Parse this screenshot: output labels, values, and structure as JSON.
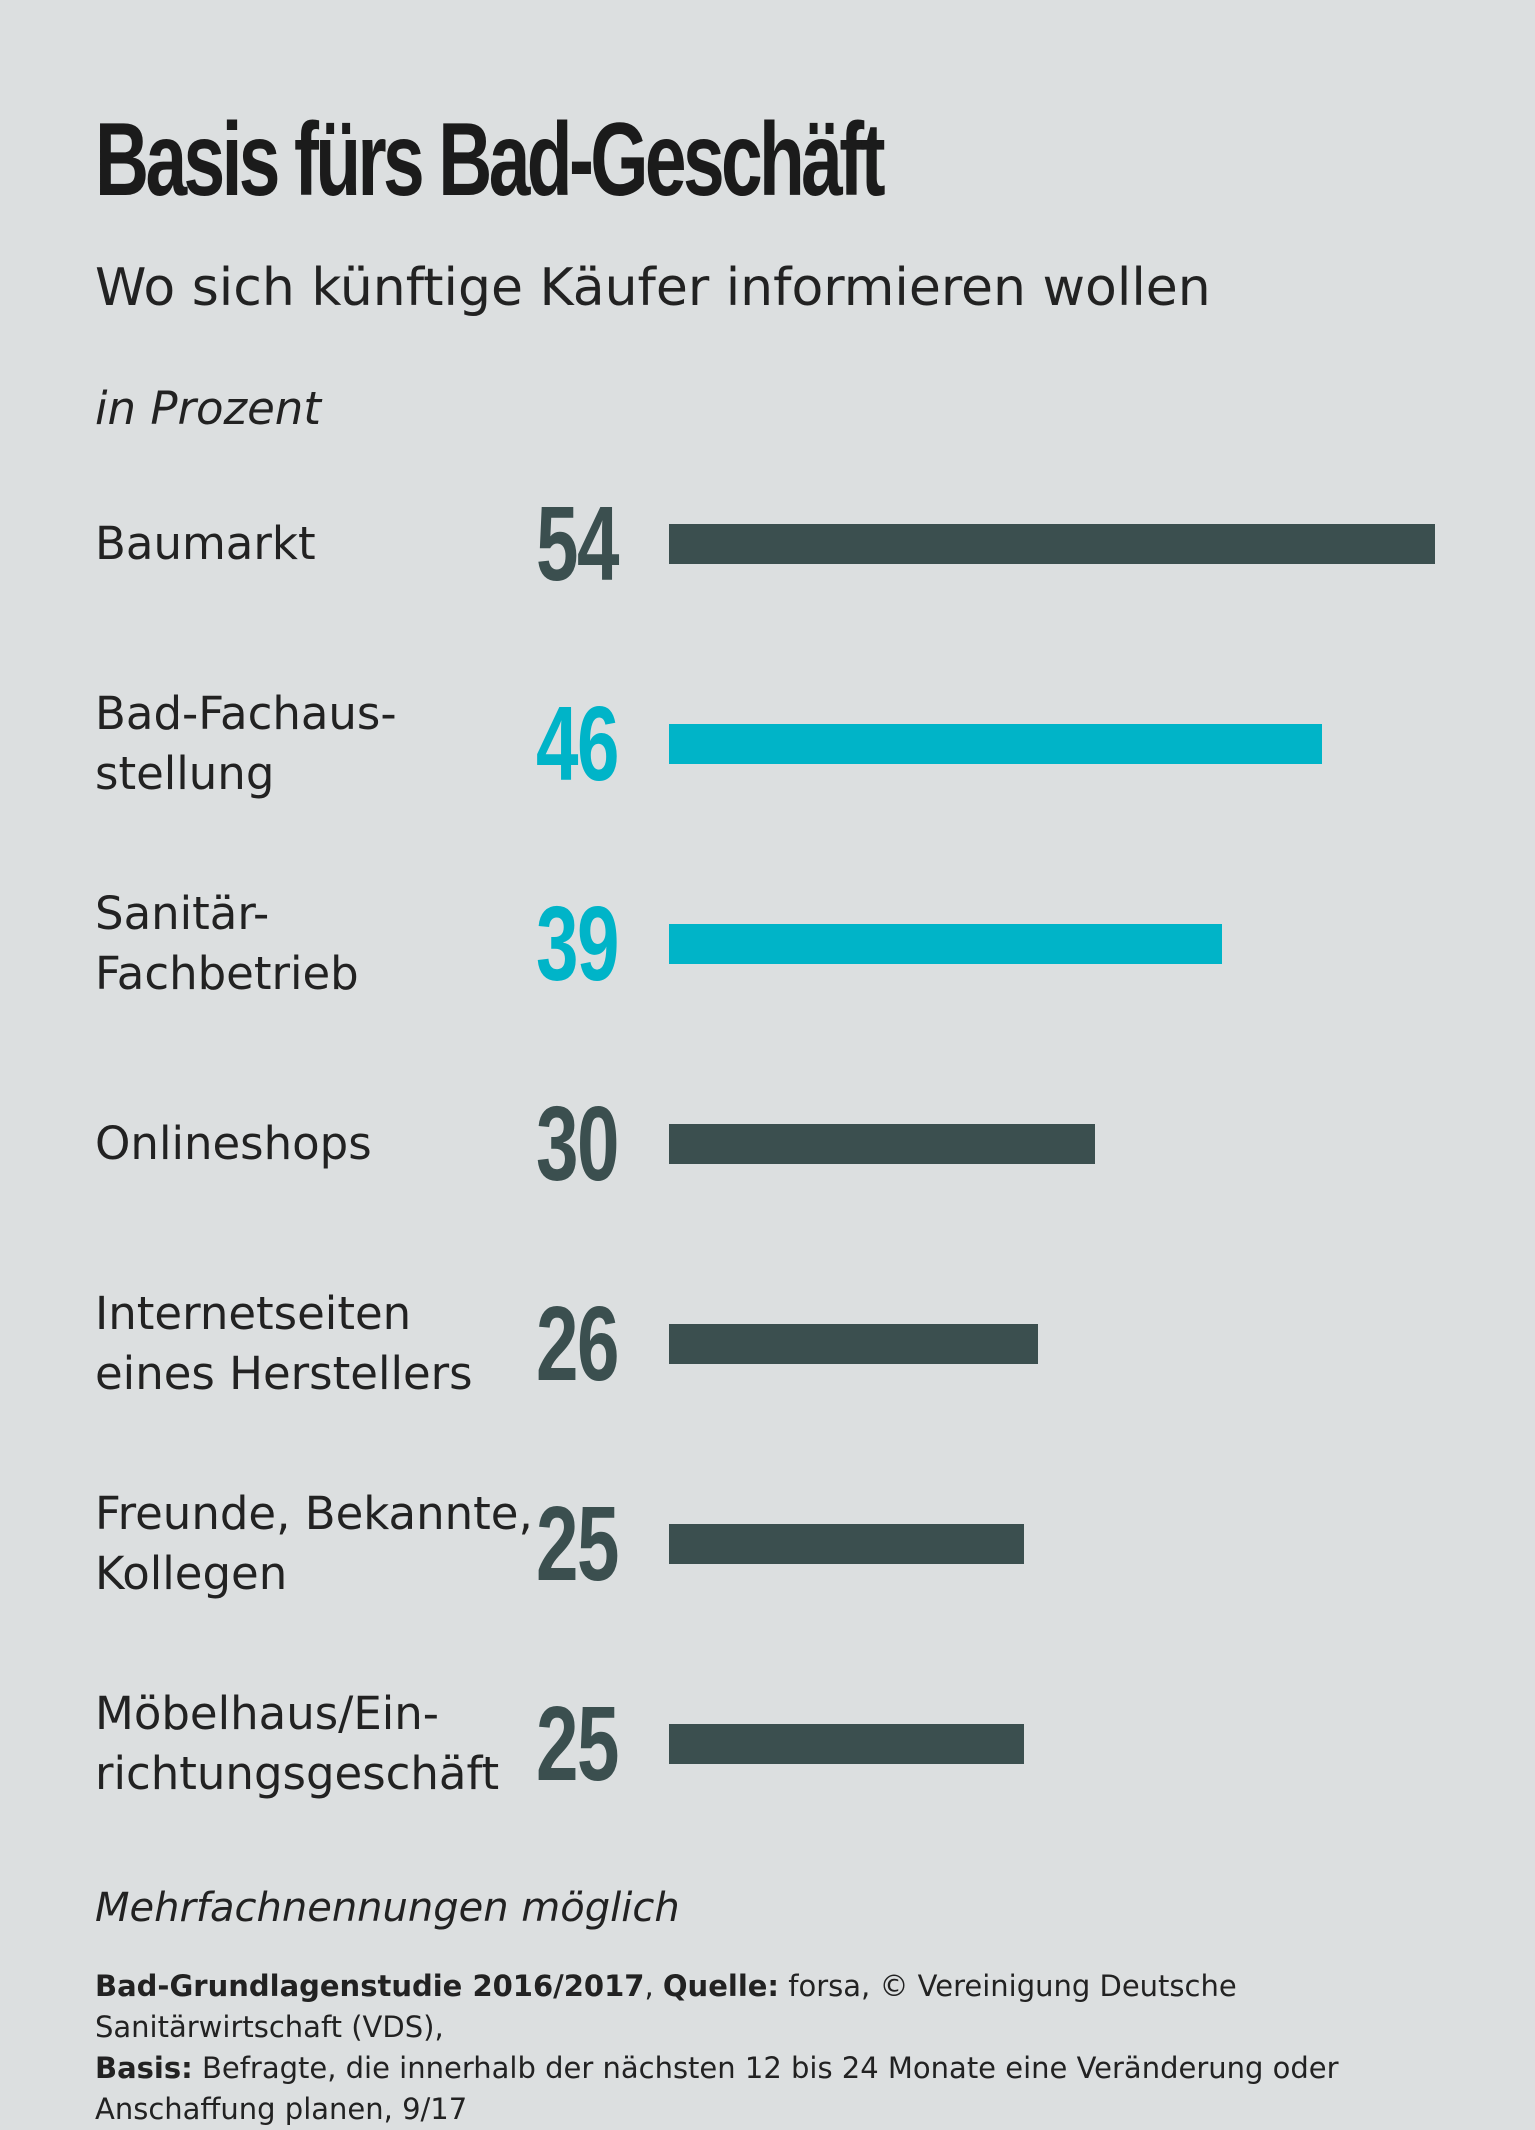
{
  "title": "Basis fürs Bad-Geschäft",
  "subtitle": "Wo sich künftige Käufer informieren wollen",
  "unit_label": "in Prozent",
  "colors": {
    "dark": "#3b4f4f",
    "accent": "#00b4c8",
    "background": "#dcdfe0"
  },
  "chart_data": {
    "type": "bar",
    "orientation": "horizontal",
    "categories": [
      "Baumarkt",
      "Bad-Fachaus-\nstellung",
      "Sanitär-\nFachbetrieb",
      "Onlineshops",
      "Internetseiten\neines Herstellers",
      "Freunde, Bekannte,\nKollegen",
      "Möbelhaus/Ein-\nrichtungsgeschäft"
    ],
    "values": [
      54,
      46,
      39,
      30,
      26,
      25,
      25
    ],
    "highlight": [
      false,
      true,
      true,
      false,
      false,
      false,
      false
    ],
    "xlim": [
      0,
      54
    ],
    "grid": false,
    "legend": "none"
  },
  "footnote": "Mehrfachnennungen möglich",
  "source": {
    "study_label": "Bad-Grundlagenstudie 2016/2017",
    "quelle_label": "Quelle:",
    "quelle_text": "forsa, © Vereinigung Deutsche Sanitärwirtschaft (VDS),",
    "basis_label": "Basis:",
    "basis_text": "Befragte, die innerhalb der nächsten 12 bis 24 Monate eine Veränderung oder Anschaffung planen, 9/17"
  }
}
